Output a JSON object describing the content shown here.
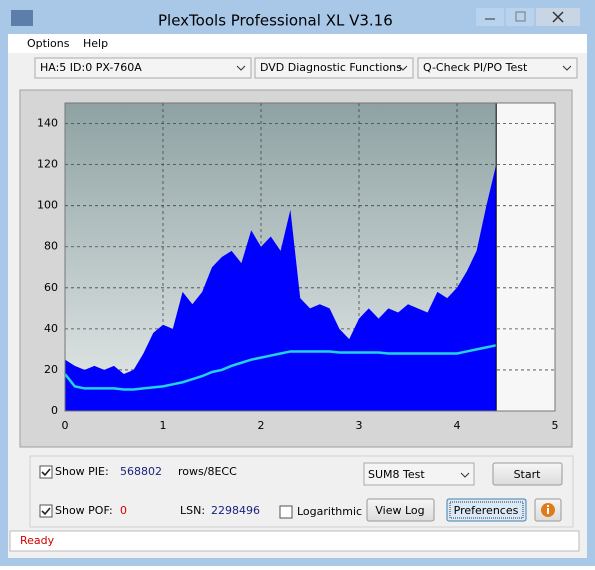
{
  "window": {
    "title": "PlexTools Professional XL V3.16"
  },
  "menu": [
    "Options",
    "Help"
  ],
  "toolbar": [
    "HA:5 ID:0  PX-760A",
    "DVD Diagnostic Functions",
    "Q-Check PI/PO Test"
  ],
  "chart_data": {
    "type": "area",
    "x": [
      0,
      0.1,
      0.2,
      0.3,
      0.4,
      0.5,
      0.6,
      0.7,
      0.8,
      0.9,
      1.0,
      1.1,
      1.2,
      1.3,
      1.4,
      1.5,
      1.6,
      1.7,
      1.8,
      1.9,
      2.0,
      2.1,
      2.2,
      2.3,
      2.4,
      2.5,
      2.6,
      2.7,
      2.8,
      2.9,
      3.0,
      3.1,
      3.2,
      3.3,
      3.4,
      3.5,
      3.6,
      3.7,
      3.8,
      3.9,
      4.0,
      4.1,
      4.2,
      4.3,
      4.4
    ],
    "series": [
      {
        "color": "#0000ff",
        "type": "area",
        "values": [
          25,
          22,
          20,
          22,
          20,
          22,
          18,
          20,
          28,
          38,
          42,
          40,
          58,
          52,
          58,
          70,
          75,
          78,
          72,
          88,
          80,
          85,
          78,
          98,
          55,
          50,
          52,
          50,
          40,
          35,
          45,
          50,
          45,
          50,
          48,
          52,
          50,
          48,
          58,
          55,
          60,
          68,
          78,
          100,
          120
        ]
      },
      {
        "color": "#22d3e8",
        "type": "line",
        "values": [
          18,
          12,
          11,
          11,
          11,
          11,
          10.5,
          10.5,
          11,
          11.5,
          12,
          13,
          14,
          15.5,
          17,
          19,
          20,
          22,
          23.5,
          25,
          26,
          27,
          28,
          29,
          29,
          29,
          29,
          29,
          28.5,
          28.5,
          28.5,
          28.5,
          28.5,
          28,
          28,
          28,
          28,
          28,
          28,
          28,
          28,
          29,
          30,
          31,
          32
        ]
      }
    ],
    "xlim": [
      0,
      5
    ],
    "ylim": [
      0,
      150
    ],
    "xticks": [
      0,
      1,
      2,
      3,
      4,
      5
    ],
    "yticks": [
      0,
      20,
      40,
      60,
      80,
      100,
      120,
      140
    ],
    "grid": true
  },
  "controls": {
    "show_pie": {
      "label": "Show PIE:",
      "value": 568802,
      "unit": "rows/8ECC",
      "checked": true
    },
    "test_mode": "SUM8 Test",
    "start": "Start",
    "show_pof": {
      "label": "Show POF:",
      "value": 0,
      "checked": true
    },
    "lsn": {
      "label": "LSN:",
      "value": 2298496
    },
    "logarithmic": {
      "label": "Logarithmic",
      "checked": false
    },
    "view_log": "View Log",
    "preferences": "Preferences"
  },
  "status": "Ready"
}
